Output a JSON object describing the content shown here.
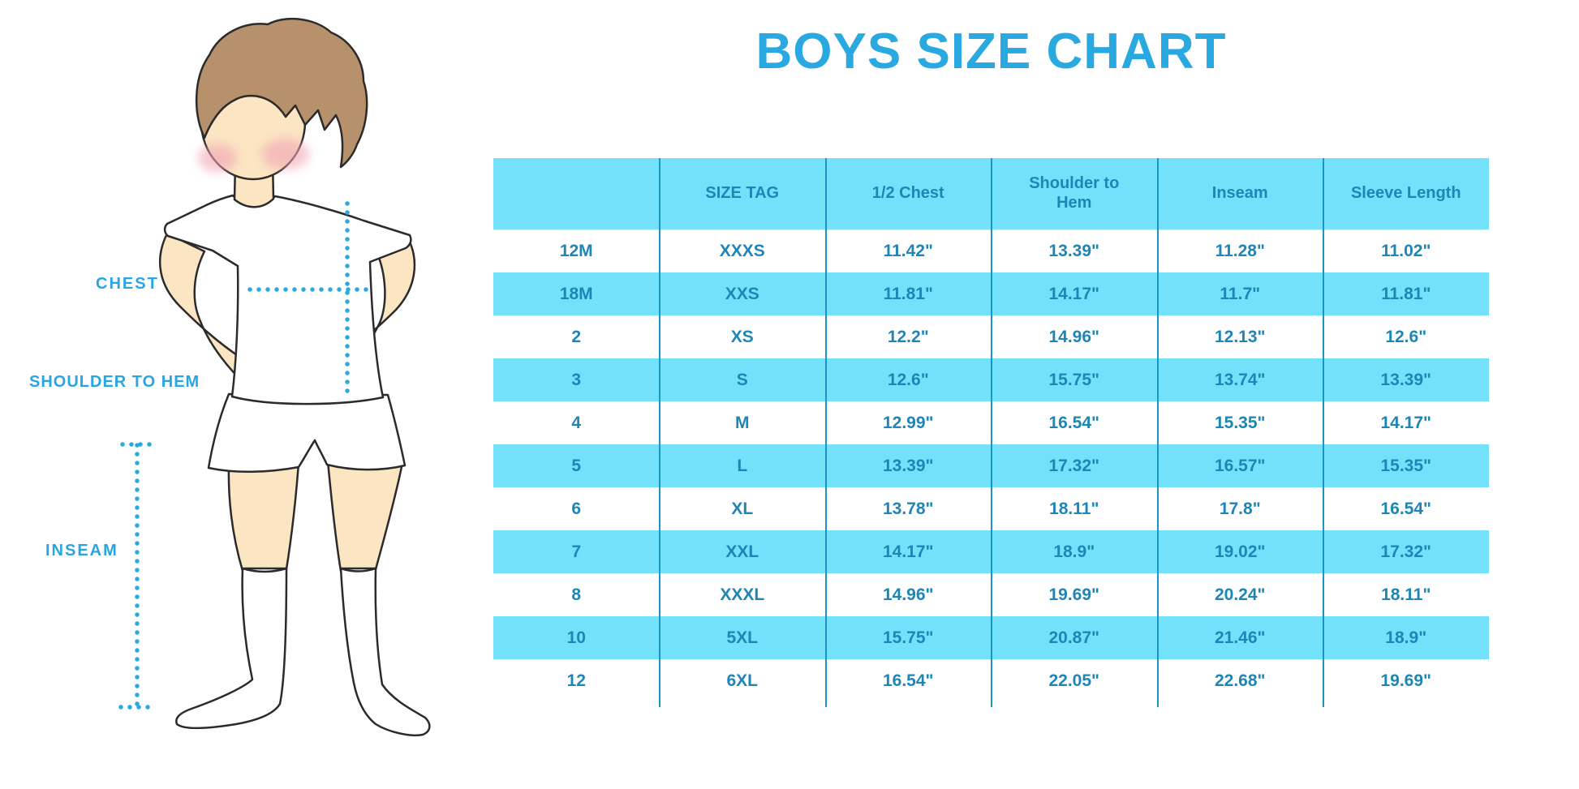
{
  "title": "BOYS SIZE CHART",
  "figure_labels": {
    "chest": "CHEST",
    "shoulder_to_hem": "SHOULDER TO HEM",
    "inseam": "INSEAM"
  },
  "colors": {
    "title_blue": "#2AA9E1",
    "label_blue": "#29A6E2",
    "dotted_line_blue": "#29ABE2",
    "band_cyan": "#74E1FB",
    "table_text_blue": "#1E86B6",
    "column_separator": "#1B95C6",
    "skin": "#FBE5C2",
    "hair_brown": "#B6916B",
    "cheek_pink": "#F1A3B5"
  },
  "chart_data": {
    "type": "table",
    "title": "BOYS SIZE CHART",
    "columns": [
      "",
      "SIZE TAG",
      "1/2 Chest",
      "Shoulder to Hem",
      "Inseam",
      "Sleeve Length"
    ],
    "rows": [
      [
        "12M",
        "XXXS",
        "11.42\"",
        "13.39\"",
        "11.28\"",
        "11.02\""
      ],
      [
        "18M",
        "XXS",
        "11.81\"",
        "14.17\"",
        "11.7\"",
        "11.81\""
      ],
      [
        "2",
        "XS",
        "12.2\"",
        "14.96\"",
        "12.13\"",
        "12.6\""
      ],
      [
        "3",
        "S",
        "12.6\"",
        "15.75\"",
        "13.74\"",
        "13.39\""
      ],
      [
        "4",
        "M",
        "12.99\"",
        "16.54\"",
        "15.35\"",
        "14.17\""
      ],
      [
        "5",
        "L",
        "13.39\"",
        "17.32\"",
        "16.57\"",
        "15.35\""
      ],
      [
        "6",
        "XL",
        "13.78\"",
        "18.11\"",
        "17.8\"",
        "16.54\""
      ],
      [
        "7",
        "XXL",
        "14.17\"",
        "18.9\"",
        "19.02\"",
        "17.32\""
      ],
      [
        "8",
        "XXXL",
        "14.96\"",
        "19.69\"",
        "20.24\"",
        "18.11\""
      ],
      [
        "10",
        "5XL",
        "15.75\"",
        "20.87\"",
        "21.46\"",
        "18.9\""
      ],
      [
        "12",
        "6XL",
        "16.54\"",
        "22.05\"",
        "22.68\"",
        "19.69\""
      ]
    ],
    "layout": {
      "row_striping": "white / cyan alternating, first data row white",
      "grid": "vertical column separators only",
      "units": "inches"
    }
  }
}
